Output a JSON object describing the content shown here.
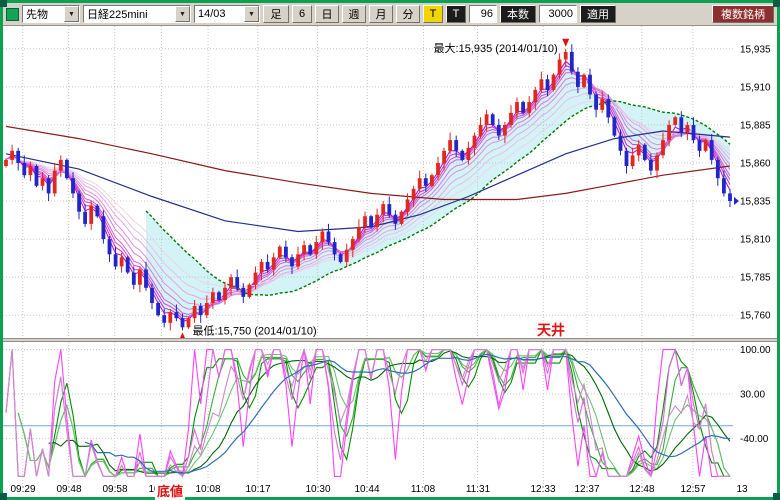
{
  "icons": {
    "chevron_down": "▼"
  },
  "toolbar": {
    "instrument_type": "先物",
    "instrument": "日経225mini",
    "contract_month": "14/03",
    "ashi_label": "足",
    "interval_value": "6",
    "period_buttons": [
      "日",
      "週",
      "月",
      "分"
    ],
    "tick_button_1": "T",
    "tick_button_2": "T",
    "bars_value": "96",
    "bars_label": "本数",
    "range_value": "3000",
    "apply_label": "適用",
    "multi_symbol_label": "複数銘柄"
  },
  "annotations": {
    "max_label": "最大:15,935 (2014/01/10)",
    "min_label": "最低:15,750 (2014/01/10)",
    "ceiling_label": "天井",
    "bottom_label": "底値"
  },
  "chart_data": [
    {
      "type": "candlestick",
      "name": "nikkei225mini-price",
      "ylim": [
        15745,
        15950
      ],
      "y_ticks": [
        "15,935",
        "15,910",
        "15,885",
        "15,860",
        "15,835",
        "15,810",
        "15,785",
        "15,760"
      ],
      "x_ticks": [
        {
          "label": "09:29",
          "f": 0.027
        },
        {
          "label": "09:48",
          "f": 0.09
        },
        {
          "label": "09:58",
          "f": 0.153
        },
        {
          "label": "10:03",
          "f": 0.217
        },
        {
          "label": "10:08",
          "f": 0.281
        },
        {
          "label": "10:17",
          "f": 0.349
        },
        {
          "label": "10:30",
          "f": 0.431
        },
        {
          "label": "10:44",
          "f": 0.499
        },
        {
          "label": "11:08",
          "f": 0.576
        },
        {
          "label": "11:31",
          "f": 0.65
        },
        {
          "label": "12:33",
          "f": 0.74
        },
        {
          "label": "12:37",
          "f": 0.8
        },
        {
          "label": "12:48",
          "f": 0.875
        },
        {
          "label": "12:57",
          "f": 0.945
        },
        {
          "label": "13",
          "f": 1.013
        }
      ],
      "first_open": 15858,
      "closes": [
        15862,
        15868,
        15860,
        15852,
        15858,
        15845,
        15850,
        15840,
        15855,
        15862,
        15850,
        15840,
        15828,
        15820,
        15832,
        15825,
        15810,
        15800,
        15792,
        15798,
        15788,
        15780,
        15790,
        15778,
        15768,
        15760,
        15755,
        15762,
        15758,
        15752,
        15758,
        15766,
        15760,
        15768,
        15775,
        15770,
        15778,
        15785,
        15778,
        15772,
        15780,
        15788,
        15795,
        15790,
        15798,
        15805,
        15798,
        15792,
        15800,
        15806,
        15800,
        15808,
        15815,
        15808,
        15800,
        15795,
        15803,
        15810,
        15818,
        15825,
        15818,
        15826,
        15833,
        15826,
        15820,
        15828,
        15836,
        15843,
        15850,
        15845,
        15852,
        15860,
        15868,
        15875,
        15868,
        15862,
        15870,
        15878,
        15885,
        15892,
        15885,
        15878,
        15885,
        15893,
        15900,
        15893,
        15900,
        15908,
        15915,
        15908,
        15918,
        15928,
        15933,
        15920,
        15910,
        15918,
        15905,
        15895,
        15902,
        15890,
        15878,
        15868,
        15858,
        15865,
        15872,
        15862,
        15855,
        15865,
        15875,
        15885,
        15890,
        15880,
        15885,
        15875,
        15868,
        15875,
        15862,
        15850,
        15840,
        15835
      ],
      "high_marker": {
        "index": 92,
        "price": 15935,
        "date": "2014/01/10"
      },
      "low_marker": {
        "index": 29,
        "price": 15750,
        "date": "2014/01/10"
      },
      "ribbon_periods": [
        3,
        4,
        5,
        6,
        8,
        10,
        13,
        16,
        20
      ],
      "green_ma_period": 24,
      "red_ma_anchors": [
        [
          0,
          15884
        ],
        [
          12,
          15876
        ],
        [
          24,
          15866
        ],
        [
          36,
          15855
        ],
        [
          48,
          15847
        ],
        [
          60,
          15840
        ],
        [
          72,
          15836
        ],
        [
          84,
          15836
        ],
        [
          92,
          15840
        ],
        [
          100,
          15846
        ],
        [
          108,
          15852
        ],
        [
          119,
          15858
        ]
      ],
      "navy_ma_anchors": [
        [
          0,
          15866
        ],
        [
          12,
          15856
        ],
        [
          24,
          15838
        ],
        [
          36,
          15822
        ],
        [
          48,
          15815
        ],
        [
          60,
          15818
        ],
        [
          68,
          15826
        ],
        [
          76,
          15838
        ],
        [
          84,
          15852
        ],
        [
          92,
          15866
        ],
        [
          100,
          15876
        ],
        [
          108,
          15881
        ],
        [
          119,
          15877
        ]
      ],
      "colors": {
        "up": "#e02820",
        "down": "#2026c8",
        "ribbon": [
          "#c800c8",
          "#cc2ccc",
          "#d148d1",
          "#d560d5",
          "#da78da",
          "#de90de",
          "#e3a8e3",
          "#e8c0e8",
          "#eed4ee"
        ],
        "green_ma": "#007a00",
        "red_ma": "#8b1a1a",
        "navy_ma": "#20308c",
        "cloud": "rgba(110,215,230,0.30)"
      }
    },
    {
      "type": "line",
      "name": "oscillator",
      "ylim": [
        -112,
        112
      ],
      "y_tick_labels": [
        "100.00",
        "30.00",
        "-40.00"
      ],
      "y_tick_values": [
        100,
        30,
        -40
      ],
      "hline": -20,
      "k_periods": [
        7,
        11,
        16
      ],
      "d_period": 3,
      "blue_period": 14,
      "colors": {
        "k": [
          "#ff40ff",
          "#e066e0",
          "#c88cc8"
        ],
        "d": [
          "#009000",
          "#3aaa3a",
          "#70c070"
        ],
        "d2": "#006600",
        "blue": "#2f6eb4",
        "hline": "#70a8da"
      }
    }
  ]
}
